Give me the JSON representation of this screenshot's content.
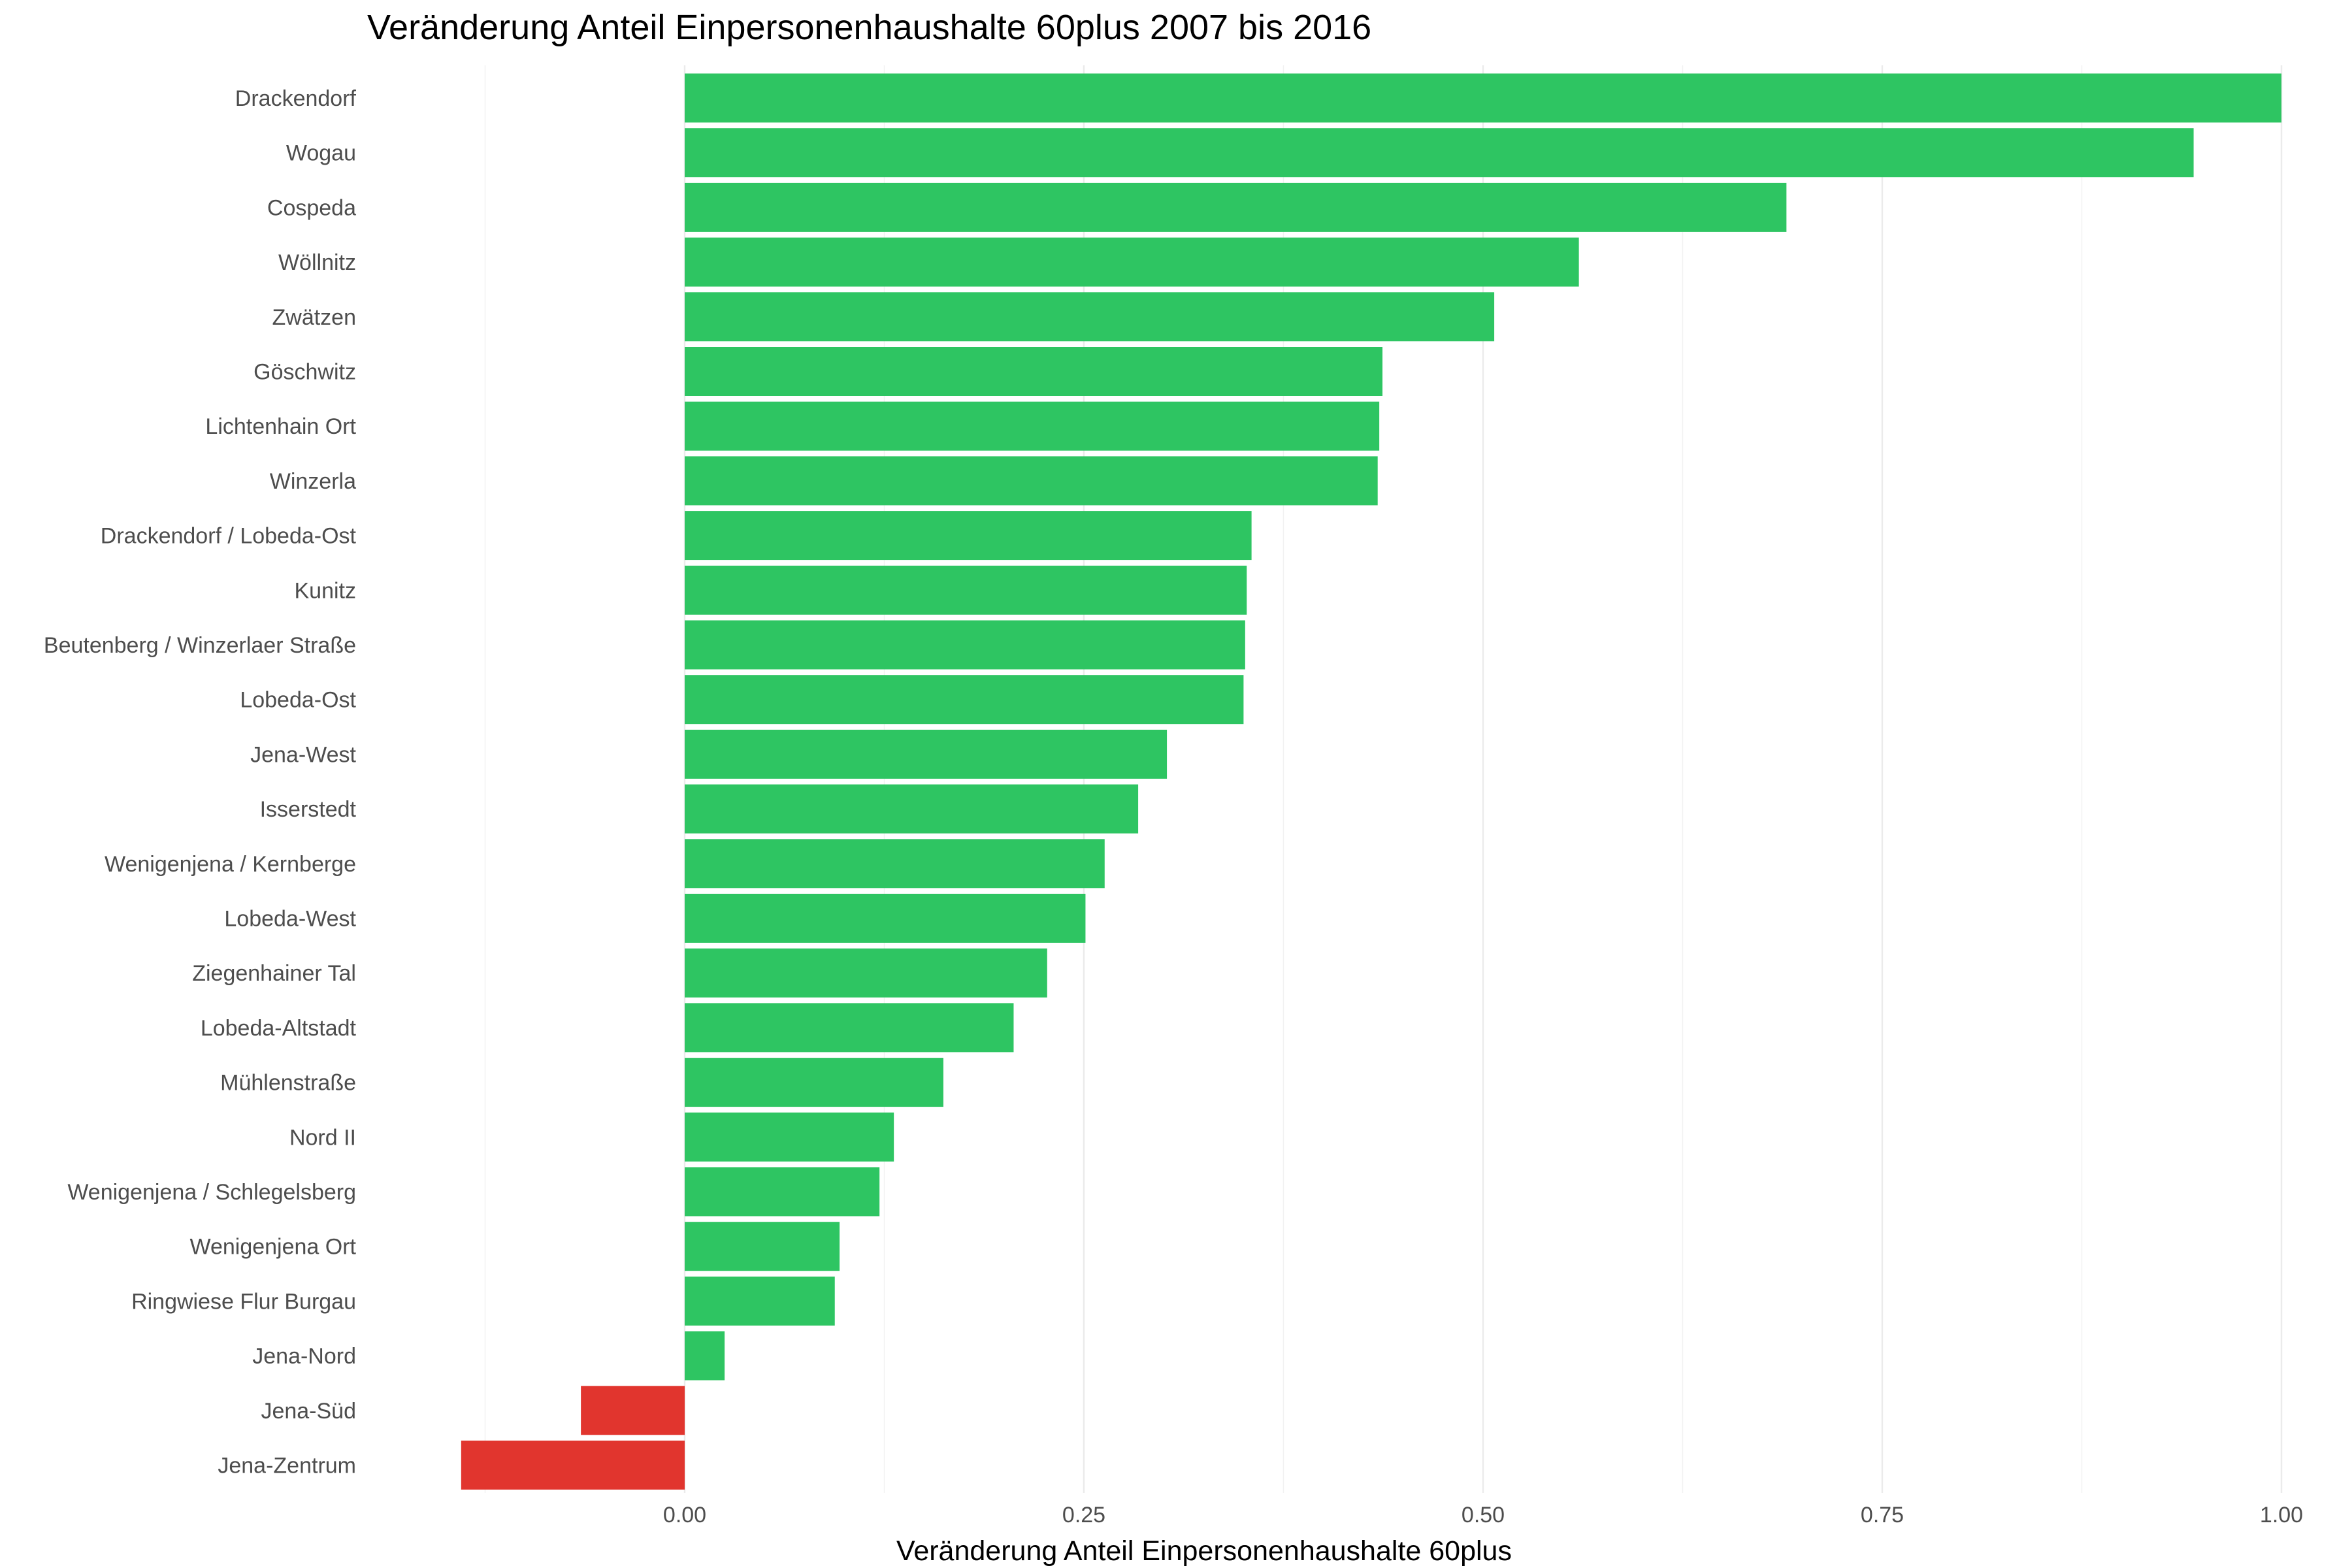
{
  "chart_data": {
    "type": "bar",
    "orientation": "horizontal",
    "title": "Veränderung Anteil Einpersonenhaushalte 60plus 2007 bis 2016",
    "xlabel": "Veränderung Anteil Einpersonenhaushalte 60plus",
    "ylabel": "",
    "xlim": [
      -0.14,
      1.0
    ],
    "xticks": [
      0.0,
      0.25,
      0.5,
      0.75,
      1.0
    ],
    "xtick_labels": [
      "0.00",
      "0.25",
      "0.50",
      "0.75",
      "1.00"
    ],
    "grid": true,
    "legend": "none",
    "categories": [
      "Drackendorf",
      "Wogau",
      "Cospeda",
      "Wöllnitz",
      "Zwätzen",
      "Göschwitz",
      "Lichtenhain Ort",
      "Winzerla",
      "Drackendorf / Lobeda-Ost",
      "Kunitz",
      "Beutenberg / Winzerlaer Straße",
      "Lobeda-Ost",
      "Jena-West",
      "Isserstedt",
      "Wenigenjena / Kernberge",
      "Lobeda-West",
      "Ziegenhainer Tal",
      "Lobeda-Altstadt",
      "Mühlenstraße",
      "Nord II",
      "Wenigenjena / Schlegelsberg",
      "Wenigenjena Ort",
      "Ringwiese Flur Burgau",
      "Jena-Nord",
      "Jena-Süd",
      "Jena-Zentrum"
    ],
    "values": [
      1.0,
      0.945,
      0.69,
      0.56,
      0.507,
      0.437,
      0.435,
      0.434,
      0.355,
      0.352,
      0.351,
      0.35,
      0.302,
      0.284,
      0.263,
      0.251,
      0.227,
      0.206,
      0.162,
      0.131,
      0.122,
      0.097,
      0.094,
      0.025,
      -0.065,
      -0.14
    ],
    "colors": {
      "positive": "#2ec562",
      "negative": "#e1352e"
    }
  }
}
